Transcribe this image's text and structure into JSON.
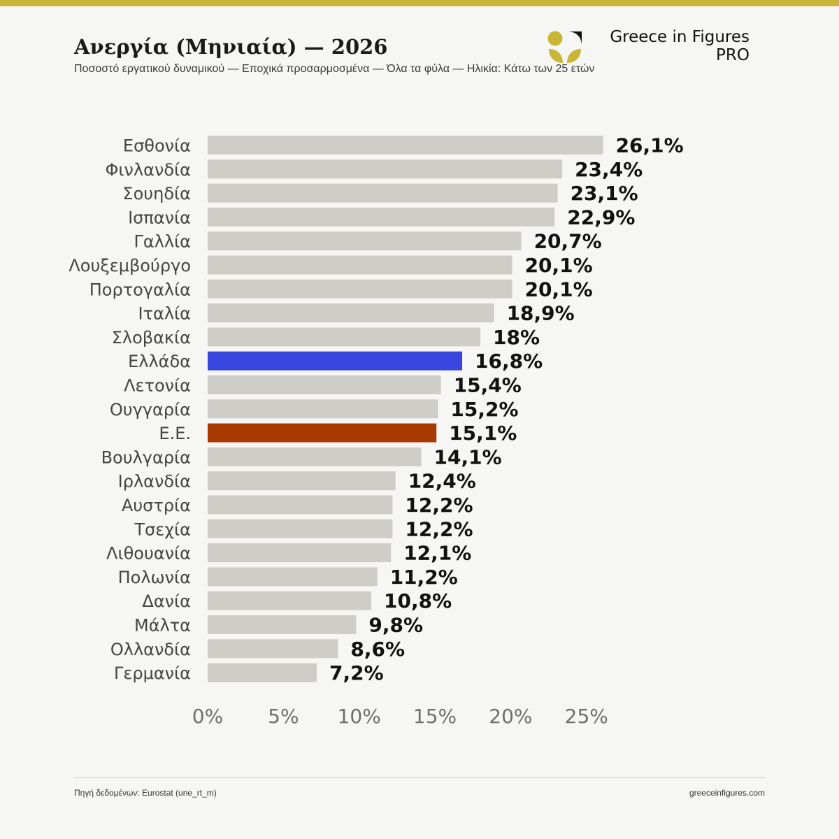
{
  "header": {
    "title": "Ανεργία (Μηνιαία) — 2026",
    "subtitle": "Ποσοστό εργατικού δυναμικού — Εποχικά προσαρμοσμένα — Όλα τα φύλα — Ηλικία: Κάτω των 25 ετών"
  },
  "brand": {
    "name": "Greece in Figures",
    "tier": "PRO",
    "logo_icon": "wheat-leaf-logo-icon",
    "gold": "#c9b637"
  },
  "footer": {
    "source": "Πηγή δεδομένων: Eurostat (une_rt_m)",
    "site": "greeceinfigures.com"
  },
  "colors": {
    "default_bar": "#cfcdc8",
    "greece_bar": "#3a47de",
    "eu_bar": "#a83a00",
    "label_text": "#444444",
    "value_text": "#111111",
    "tick_text": "#6e6e6e"
  },
  "chart_data": {
    "type": "bar",
    "orientation": "horizontal",
    "categories": [
      "Εσθονία",
      "Φινλανδία",
      "Σουηδία",
      "Ισπανία",
      "Γαλλία",
      "Λουξεμβούργο",
      "Πορτογαλία",
      "Ιταλία",
      "Σλοβακία",
      "Ελλάδα",
      "Λετονία",
      "Ουγγαρία",
      "Ε.Ε.",
      "Βουλγαρία",
      "Ιρλανδία",
      "Αυστρία",
      "Τσεχία",
      "Λιθουανία",
      "Πολωνία",
      "Δανία",
      "Μάλτα",
      "Ολλανδία",
      "Γερμανία"
    ],
    "values": [
      26.1,
      23.4,
      23.1,
      22.9,
      20.7,
      20.1,
      20.1,
      18.9,
      18,
      16.8,
      15.4,
      15.2,
      15.1,
      14.1,
      12.4,
      12.2,
      12.2,
      12.1,
      11.2,
      10.8,
      9.8,
      8.6,
      7.2
    ],
    "value_labels": [
      "26,1%",
      "23,4%",
      "23,1%",
      "22,9%",
      "20,7%",
      "20,1%",
      "20,1%",
      "18,9%",
      "18%",
      "16,8%",
      "15,4%",
      "15,2%",
      "15,1%",
      "14,1%",
      "12,4%",
      "12,2%",
      "12,2%",
      "12,1%",
      "11,2%",
      "10,8%",
      "9,8%",
      "8,6%",
      "7,2%"
    ],
    "highlights": {
      "Ελλάδα": "greece",
      "Ε.Ε.": "eu"
    },
    "xlim": [
      0,
      26.1
    ],
    "xticks": [
      0,
      5,
      10,
      15,
      20,
      25
    ],
    "xtick_labels": [
      "0%",
      "5%",
      "10%",
      "15%",
      "20%",
      "25%"
    ],
    "grid": false,
    "legend": "none"
  }
}
